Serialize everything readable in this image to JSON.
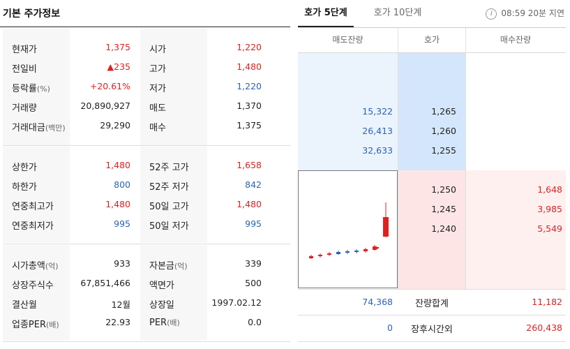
{
  "left": {
    "title": "기본 주가정보",
    "sections": [
      {
        "rows": [
          {
            "l_label": "현재가",
            "l_suffix": "",
            "l_value": "1,375",
            "l_color": "red",
            "r_label": "시가",
            "r_suffix": "",
            "r_value": "1,220",
            "r_color": "red"
          },
          {
            "l_label": "전일비",
            "l_suffix": "",
            "l_value": "▲235",
            "l_color": "red",
            "r_label": "고가",
            "r_suffix": "",
            "r_value": "1,480",
            "r_color": "red"
          },
          {
            "l_label": "등락률",
            "l_suffix": "(%)",
            "l_value": "+20.61%",
            "l_color": "red",
            "r_label": "저가",
            "r_suffix": "",
            "r_value": "1,220",
            "r_color": "blue"
          },
          {
            "l_label": "거래량",
            "l_suffix": "",
            "l_value": "20,890,927",
            "l_color": "black",
            "r_label": "매도",
            "r_suffix": "",
            "r_value": "1,370",
            "r_color": "black"
          },
          {
            "l_label": "거래대금",
            "l_suffix": "(백만)",
            "l_value": "29,290",
            "l_color": "black",
            "r_label": "매수",
            "r_suffix": "",
            "r_value": "1,375",
            "r_color": "black"
          }
        ]
      },
      {
        "rows": [
          {
            "l_label": "상한가",
            "l_suffix": "",
            "l_value": "1,480",
            "l_color": "red",
            "r_label": "52주 고가",
            "r_suffix": "",
            "r_value": "1,658",
            "r_color": "red"
          },
          {
            "l_label": "하한가",
            "l_suffix": "",
            "l_value": "800",
            "l_color": "blue",
            "r_label": "52주 저가",
            "r_suffix": "",
            "r_value": "842",
            "r_color": "blue"
          },
          {
            "l_label": "연중최고가",
            "l_suffix": "",
            "l_value": "1,480",
            "l_color": "red",
            "r_label": "50일 고가",
            "r_suffix": "",
            "r_value": "1,480",
            "r_color": "red"
          },
          {
            "l_label": "연중최저가",
            "l_suffix": "",
            "l_value": "995",
            "l_color": "blue",
            "r_label": "50일 저가",
            "r_suffix": "",
            "r_value": "995",
            "r_color": "blue"
          }
        ]
      },
      {
        "rows": [
          {
            "l_label": "시가총액",
            "l_suffix": "(억)",
            "l_value": "933",
            "l_color": "black",
            "r_label": "자본금",
            "r_suffix": "(억)",
            "r_value": "339",
            "r_color": "black"
          },
          {
            "l_label": "상장주식수",
            "l_suffix": "",
            "l_value": "67,851,466",
            "l_color": "black",
            "r_label": "액면가",
            "r_suffix": "",
            "r_value": "500",
            "r_color": "black"
          },
          {
            "l_label": "결산월",
            "l_suffix": "",
            "l_value": "12월",
            "l_color": "black",
            "r_label": "상장일",
            "r_suffix": "",
            "r_value": "1997.02.12",
            "r_color": "black"
          },
          {
            "l_label": "업종PER",
            "l_suffix": "(배)",
            "l_value": "22.93",
            "l_color": "black",
            "r_label": "PER",
            "r_suffix": "(배)",
            "r_value": "0.0",
            "r_color": "black"
          }
        ]
      }
    ]
  },
  "right": {
    "tabs": [
      "호가 5단계",
      "호가 10단계"
    ],
    "info_icon": "info-icon",
    "delay_text": "08:59 20분 지연",
    "columns": [
      "매도잔량",
      "호가",
      "매수잔량"
    ],
    "asks": [
      {
        "volume": "15,322",
        "price": "1,265"
      },
      {
        "volume": "26,413",
        "price": "1,260"
      },
      {
        "volume": "32,633",
        "price": "1,255"
      }
    ],
    "bids": [
      {
        "price": "1,250",
        "volume": "1,648"
      },
      {
        "price": "1,245",
        "volume": "3,985"
      },
      {
        "price": "1,240",
        "volume": "5,549"
      }
    ],
    "summary": [
      {
        "ask": "74,368",
        "label": "잔량합계",
        "bid": "11,182"
      },
      {
        "ask": "0",
        "label": "장후시간외",
        "bid": "260,438"
      }
    ]
  },
  "colors": {
    "up": "#e02020",
    "down": "#2a63b5",
    "ask_bg": "#ebf3fd",
    "bid_bg": "#fff0f0"
  }
}
